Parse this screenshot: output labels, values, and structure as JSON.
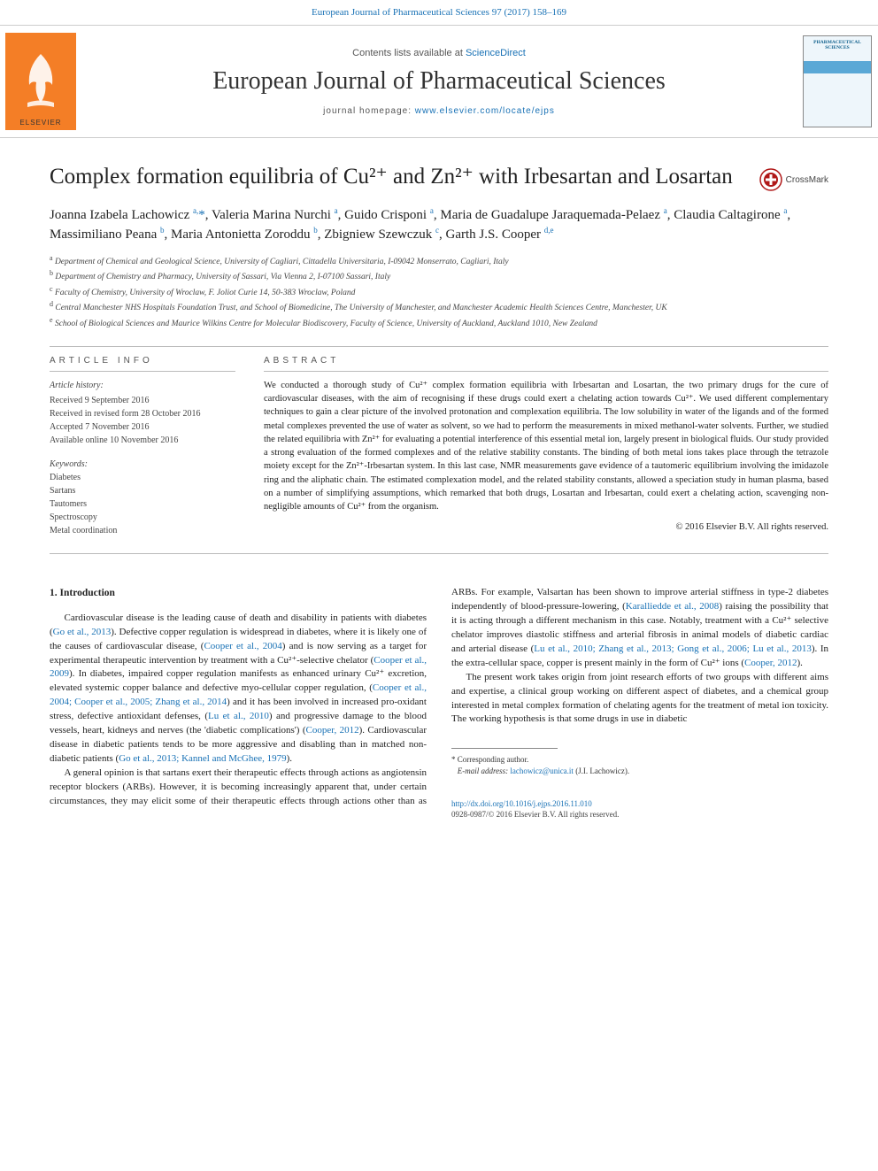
{
  "top_link": {
    "citation": "European Journal of Pharmaceutical Sciences 97 (2017) 158–169"
  },
  "header": {
    "publisher_name": "ELSEVIER",
    "contents_prefix": "Contents lists available at ",
    "contents_link": "ScienceDirect",
    "journal_name": "European Journal of Pharmaceutical Sciences",
    "homepage_prefix": "journal homepage: ",
    "homepage_url": "www.elsevier.com/locate/ejps",
    "cover_title": "PHARMACEUTICAL SCIENCES"
  },
  "crossmark_label": "CrossMark",
  "title": "Complex formation equilibria of Cu²⁺ and Zn²⁺ with Irbesartan and Losartan",
  "authors_html": "Joanna Izabela Lachowicz <sup>a,</sup><span class='star'>*</span>, Valeria Marina Nurchi <sup>a</sup>, Guido Crisponi <sup>a</sup>, Maria de Guadalupe Jaraquemada-Pelaez <sup>a</sup>, Claudia Caltagirone <sup>a</sup>, Massimiliano Peana <sup>b</sup>, Maria Antonietta Zoroddu <sup>b</sup>, Zbigniew Szewczuk <sup>c</sup>, Garth J.S. Cooper <sup>d,e</sup>",
  "affiliations": [
    {
      "sup": "a",
      "text": "Department of Chemical and Geological Science, University of Cagliari, Cittadella Universitaria, I-09042 Monserrato, Cagliari, Italy"
    },
    {
      "sup": "b",
      "text": "Department of Chemistry and Pharmacy, University of Sassari, Via Vienna 2, I-07100 Sassari, Italy"
    },
    {
      "sup": "c",
      "text": "Faculty of Chemistry, University of Wroclaw, F. Joliot Curie 14, 50-383 Wroclaw, Poland"
    },
    {
      "sup": "d",
      "text": "Central Manchester NHS Hospitals Foundation Trust, and School of Biomedicine, The University of Manchester, and Manchester Academic Health Sciences Centre, Manchester, UK"
    },
    {
      "sup": "e",
      "text": "School of Biological Sciences and Maurice Wilkins Centre for Molecular Biodiscovery, Faculty of Science, University of Auckland, Auckland 1010, New Zealand"
    }
  ],
  "article_info_label": "article info",
  "abstract_label": "abstract",
  "history": {
    "label": "Article history:",
    "items": [
      "Received 9 September 2016",
      "Received in revised form 28 October 2016",
      "Accepted 7 November 2016",
      "Available online 10 November 2016"
    ]
  },
  "keywords": {
    "label": "Keywords:",
    "items": [
      "Diabetes",
      "Sartans",
      "Tautomers",
      "Spectroscopy",
      "Metal coordination"
    ]
  },
  "abstract_text": "We conducted a thorough study of Cu²⁺ complex formation equilibria with Irbesartan and Losartan, the two primary drugs for the cure of cardiovascular diseases, with the aim of recognising if these drugs could exert a chelating action towards Cu²⁺. We used different complementary techniques to gain a clear picture of the involved protonation and complexation equilibria. The low solubility in water of the ligands and of the formed metal complexes prevented the use of water as solvent, so we had to perform the measurements in mixed methanol-water solvents. Further, we studied the related equilibria with Zn²⁺ for evaluating a potential interference of this essential metal ion, largely present in biological fluids. Our study provided a strong evaluation of the formed complexes and of the relative stability constants. The binding of both metal ions takes place through the tetrazole moiety except for the Zn²⁺-Irbesartan system. In this last case, NMR measurements gave evidence of a tautomeric equilibrium involving the imidazole ring and the aliphatic chain. The estimated complexation model, and the related stability constants, allowed a speciation study in human plasma, based on a number of simplifying assumptions, which remarked that both drugs, Losartan and Irbesartan, could exert a chelating action, scavenging non-negligible amounts of Cu²⁺ from the organism.",
  "copyright": "© 2016 Elsevier B.V. All rights reserved.",
  "body": {
    "heading": "1. Introduction",
    "para1_html": "Cardiovascular disease is the leading cause of death and disability in patients with diabetes (<span class='ref'>Go et al., 2013</span>). Defective copper regulation is widespread in diabetes, where it is likely one of the causes of cardiovascular disease, (<span class='ref'>Cooper et al., 2004</span>) and is now serving as a target for experimental therapeutic intervention by treatment with a Cu²⁺-selective chelator (<span class='ref'>Cooper et al., 2009</span>). In diabetes, impaired copper regulation manifests as enhanced urinary Cu²⁺ excretion, elevated systemic copper balance and defective myo-cellular copper regulation, (<span class='ref'>Cooper et al., 2004; Cooper et al., 2005; Zhang et al., 2014</span>) and it has been involved in increased pro-oxidant stress, defective antioxidant defenses, (<span class='ref'>Lu et al., 2010</span>) and progressive damage to the blood vessels, heart, kidneys and nerves (the 'diabetic complications') (<span class='ref'>Cooper, 2012</span>). Cardiovascular disease in diabetic patients tends to be more aggressive and disabling than in matched non-diabetic patients (<span class='ref'>Go et al., 2013; Kannel and McGhee, 1979</span>).",
    "para2_html": "A general opinion is that sartans exert their therapeutic effects through actions as angiotensin receptor blockers (ARBs). However, it is becoming increasingly apparent that, under certain circumstances, they may elicit some of their therapeutic effects through actions other than as ARBs. For example, Valsartan has been shown to improve arterial stiffness in type-2 diabetes independently of blood-pressure-lowering, (<span class='ref'>Karalliedde et al., 2008</span>) raising the possibility that it is acting through a different mechanism in this case. Notably, treatment with a Cu²⁺ selective chelator improves diastolic stiffness and arterial fibrosis in animal models of diabetic cardiac and arterial disease (<span class='ref'>Lu et al., 2010; Zhang et al., 2013; Gong et al., 2006; Lu et al., 2013</span>). In the extra-cellular space, copper is present mainly in the form of Cu²⁺ ions (<span class='ref'>Cooper, 2012</span>).",
    "para3_html": "The present work takes origin from joint research efforts of two groups with different aims and expertise, a clinical group working on different aspect of diabetes, and a chemical group interested in metal complex formation of chelating agents for the treatment of metal ion toxicity. The working hypothesis is that some drugs in use in diabetic"
  },
  "footnote": {
    "corr_label": "Corresponding author.",
    "email_label": "E-mail address:",
    "email": "lachowicz@unica.it",
    "email_paren": "(J.I. Lachowicz)."
  },
  "footer": {
    "doi": "http://dx.doi.org/10.1016/j.ejps.2016.11.010",
    "issn_line": "0928-0987/© 2016 Elsevier B.V. All rights reserved."
  },
  "colors": {
    "link": "#1871b5",
    "elsevier_orange": "#f47e26",
    "text": "#1a1a1a",
    "rule": "#bbbbbb",
    "cover_bg": "#eef6fb",
    "cover_band": "#5aa8d6"
  }
}
